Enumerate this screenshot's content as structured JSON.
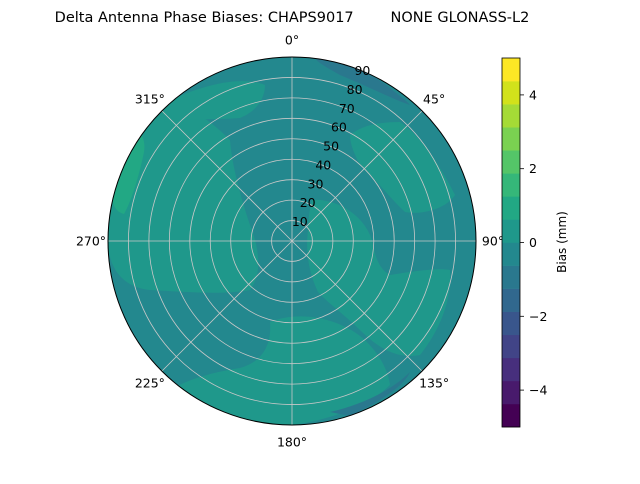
{
  "chart_data": {
    "type": "polar-contour",
    "title": "Delta Antenna Phase Biases: CHAPS9017        NONE GLONASS-L2",
    "angle_axis": {
      "zero_location": "top",
      "direction": "clockwise",
      "tick_labels": [
        "0°",
        "45°",
        "90°",
        "135°",
        "180°",
        "225°",
        "270°",
        "315°"
      ]
    },
    "radial_axis": {
      "quantity": "zenith angle",
      "range": [
        0,
        90
      ],
      "tick_labels": [
        "10",
        "20",
        "30",
        "40",
        "50",
        "60",
        "70",
        "80",
        "90"
      ],
      "grid": true
    },
    "colorbar": {
      "label": "Bias (mm)",
      "range": [
        -5,
        5
      ],
      "tick_labels": [
        "−4",
        "−2",
        "0",
        "2",
        "4"
      ],
      "levels": [
        -5,
        -4.375,
        -3.75,
        -3.125,
        -2.5,
        -1.875,
        -1.25,
        -0.625,
        0,
        0.625,
        1.25,
        1.875,
        2.5,
        3.125,
        3.75,
        4.375,
        5
      ],
      "colors": [
        "#440154",
        "#481a6c",
        "#472f7d",
        "#414487",
        "#39568c",
        "#31688e",
        "#2a788e",
        "#23888e",
        "#1f988b",
        "#22a884",
        "#35b779",
        "#54c568",
        "#7ad151",
        "#a5db36",
        "#d2e21b",
        "#fde725"
      ]
    },
    "regions": [
      {
        "level_range": [
          -0.625,
          0
        ],
        "color": "#23888e",
        "description": "background bias"
      },
      {
        "level_range": [
          0,
          0.625
        ],
        "color": "#1f988b",
        "azimuth_range_deg": [
          200,
          350
        ],
        "zenith_range_deg": [
          20,
          85
        ]
      },
      {
        "level_range": [
          0,
          0.625
        ],
        "color": "#1f988b",
        "azimuth_range_deg": [
          30,
          80
        ],
        "zenith_range_deg": [
          45,
          85
        ]
      },
      {
        "level_range": [
          0,
          0.625
        ],
        "color": "#1f988b",
        "azimuth_range_deg": [
          95,
          170
        ],
        "zenith_range_deg": [
          20,
          70
        ]
      },
      {
        "level_range": [
          0,
          0.625
        ],
        "color": "#1f988b",
        "azimuth_range_deg": [
          160,
          200
        ],
        "zenith_range_deg": [
          75,
          90
        ]
      },
      {
        "level_range": [
          0.625,
          1.25
        ],
        "color": "#22a884",
        "azimuth_range_deg": [
          290,
          300
        ],
        "zenith_range_deg": [
          78,
          88
        ]
      },
      {
        "level_range": [
          -1.25,
          -0.625
        ],
        "color": "#2a788e",
        "azimuth_range_deg": [
          20,
          45
        ],
        "zenith_range_deg": [
          85,
          90
        ]
      }
    ]
  }
}
